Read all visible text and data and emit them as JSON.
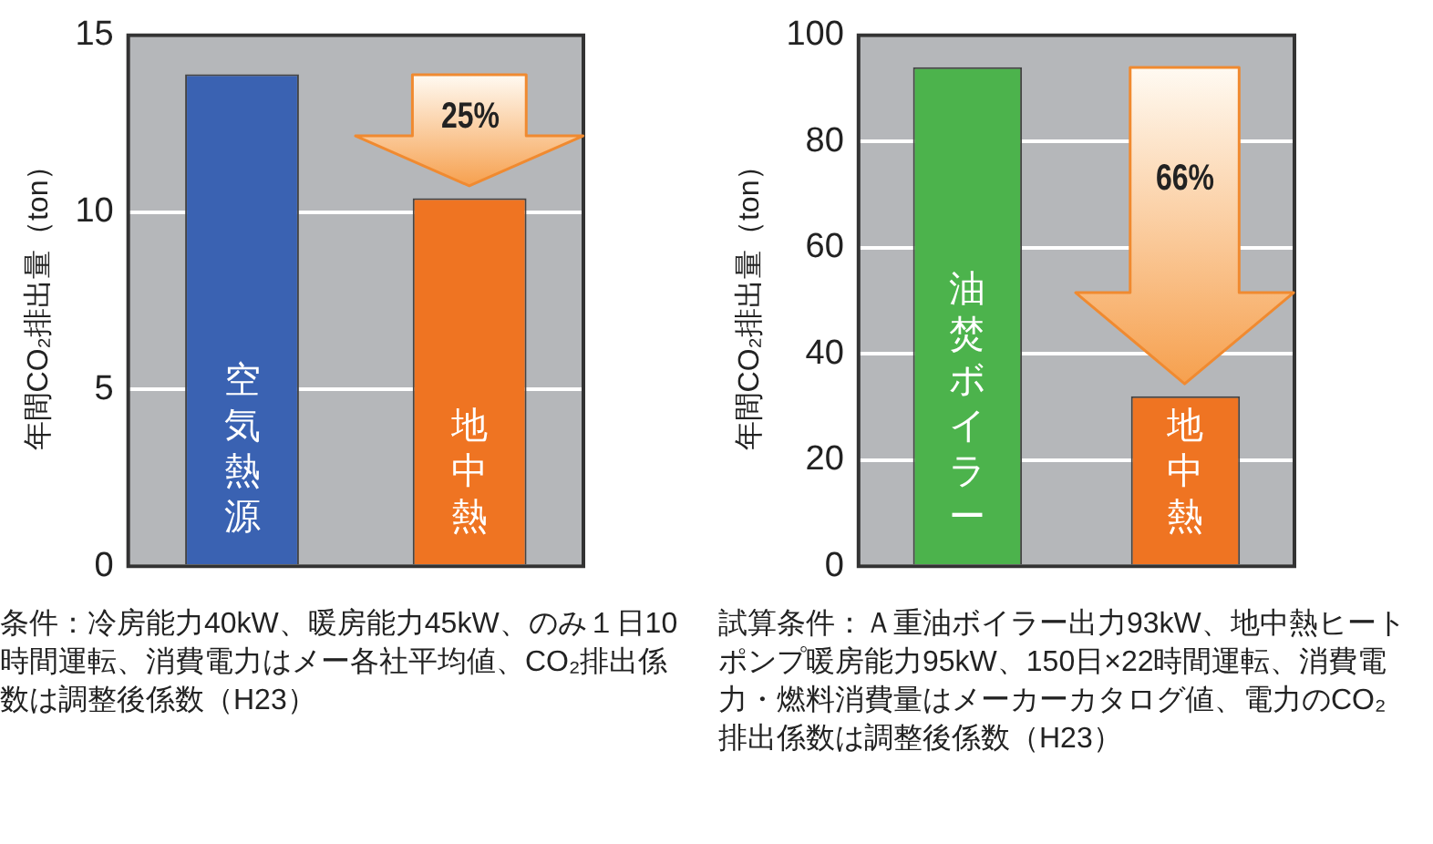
{
  "chart_data": [
    {
      "type": "bar",
      "ylabel": "年間CO₂排出量（ton）",
      "categories": [
        "空気熱源",
        "地中熱"
      ],
      "colors": [
        "#3a62b2",
        "#ef7422"
      ],
      "values": [
        13.9,
        10.4
      ],
      "ylim": [
        0,
        15
      ],
      "yticks": [
        0,
        5,
        10,
        15
      ],
      "grid": "y",
      "legend": false,
      "annotations": [
        "25%",
        "条件：冷房能力40kW、暖房能力45kW、のみ１日10時間運転、消費電力はメー各社平均値、CO₂排出係数は調整後係数（H23）"
      ]
    },
    {
      "type": "bar",
      "ylabel": "年間CO₂排出量（ton）",
      "categories": [
        "油焚ボイラー",
        "地中熱"
      ],
      "colors": [
        "#4cb34c",
        "#ef7422"
      ],
      "values": [
        94,
        32
      ],
      "ylim": [
        0,
        100
      ],
      "yticks": [
        0,
        20,
        40,
        60,
        80,
        100
      ],
      "grid": "y",
      "legend": false,
      "annotations": [
        "66%",
        "試算条件：Ａ重油ボイラー出力93kW、地中熱ヒートポンプ暖房能力95kW、150日×22時間運転、消費電力・燃料消費量はメーカーカタログ値、電力のCO₂排出係数は調整後係数（H23）"
      ]
    }
  ]
}
